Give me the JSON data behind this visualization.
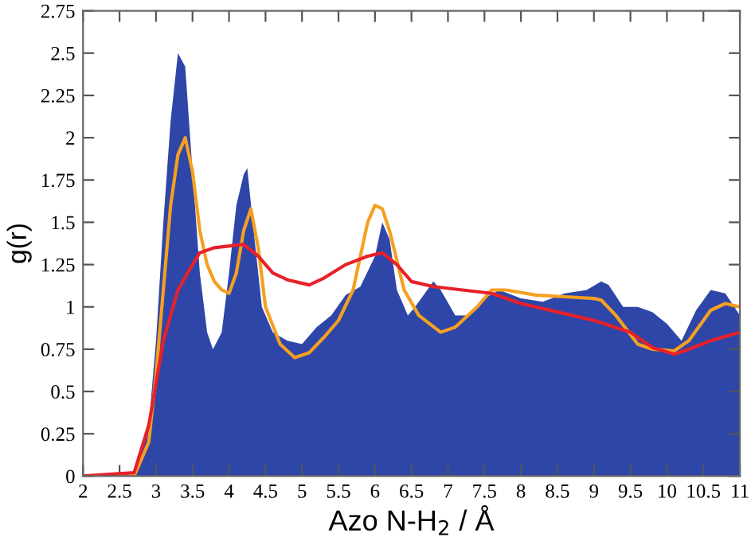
{
  "chart_data": {
    "type": "area",
    "xlabel": "Azo N-H$_{2}$ / Å",
    "ylabel": "g(r)",
    "xlim": [
      2,
      11
    ],
    "ylim": [
      0,
      2.75
    ],
    "xticks": [
      2,
      2.5,
      3,
      3.5,
      4,
      4.5,
      5,
      5.5,
      6,
      6.5,
      7,
      7.5,
      8,
      8.5,
      9,
      9.5,
      10,
      10.5,
      11
    ],
    "yticks": [
      0,
      0.25,
      0.5,
      0.75,
      1,
      1.25,
      1.5,
      1.75,
      2,
      2.25,
      2.5,
      2.75
    ],
    "grid": false,
    "series": [
      {
        "color": "#2e46a8",
        "x": [
          2,
          2.7,
          2.9,
          3.0,
          3.1,
          3.2,
          3.3,
          3.4,
          3.5,
          3.6,
          3.7,
          3.78,
          3.9,
          4.0,
          4.1,
          4.2,
          4.25,
          4.35,
          4.45,
          4.6,
          4.8,
          5.0,
          5.2,
          5.4,
          5.6,
          5.8,
          6.0,
          6.1,
          6.2,
          6.3,
          6.45,
          6.55,
          6.8,
          6.9,
          7.1,
          7.3,
          7.5,
          7.7,
          8.0,
          8.3,
          8.6,
          8.9,
          9.1,
          9.2,
          9.4,
          9.6,
          9.8,
          10.0,
          10.2,
          10.4,
          10.6,
          10.8,
          11.0
        ],
        "values": [
          0,
          0,
          0.3,
          0.8,
          1.5,
          2.1,
          2.5,
          2.42,
          1.8,
          1.2,
          0.85,
          0.75,
          0.85,
          1.2,
          1.6,
          1.78,
          1.82,
          1.4,
          1.0,
          0.85,
          0.8,
          0.78,
          0.88,
          0.95,
          1.07,
          1.12,
          1.3,
          1.5,
          1.4,
          1.1,
          0.95,
          1.0,
          1.15,
          1.1,
          0.95,
          0.95,
          1.05,
          1.1,
          1.05,
          1.03,
          1.08,
          1.1,
          1.15,
          1.13,
          1.0,
          1.0,
          0.97,
          0.9,
          0.8,
          0.98,
          1.1,
          1.08,
          0.95
        ]
      },
      {
        "type": "line",
        "color": "#f5a020",
        "x": [
          2,
          2.7,
          2.9,
          3.0,
          3.1,
          3.2,
          3.3,
          3.4,
          3.5,
          3.6,
          3.7,
          3.8,
          3.9,
          4.0,
          4.1,
          4.2,
          4.3,
          4.4,
          4.5,
          4.7,
          4.9,
          5.1,
          5.3,
          5.5,
          5.7,
          5.9,
          6.0,
          6.1,
          6.2,
          6.4,
          6.6,
          6.9,
          7.1,
          7.4,
          7.6,
          7.8,
          8.2,
          8.6,
          9.0,
          9.1,
          9.3,
          9.6,
          9.8,
          10.1,
          10.3,
          10.6,
          10.8,
          11.0
        ],
        "values": [
          0,
          0,
          0.2,
          0.6,
          1.1,
          1.6,
          1.9,
          2.0,
          1.8,
          1.45,
          1.25,
          1.15,
          1.1,
          1.08,
          1.2,
          1.45,
          1.58,
          1.35,
          1.0,
          0.78,
          0.7,
          0.73,
          0.82,
          0.92,
          1.1,
          1.5,
          1.6,
          1.58,
          1.45,
          1.1,
          0.95,
          0.85,
          0.88,
          1.0,
          1.1,
          1.1,
          1.07,
          1.06,
          1.05,
          1.04,
          0.95,
          0.78,
          0.75,
          0.74,
          0.8,
          0.98,
          1.02,
          1.0
        ]
      },
      {
        "type": "line",
        "color": "#e8202a",
        "x": [
          2,
          2.7,
          2.9,
          3.1,
          3.3,
          3.5,
          3.6,
          3.8,
          4.2,
          4.4,
          4.6,
          4.8,
          5.1,
          5.3,
          5.6,
          5.9,
          6.1,
          6.3,
          6.5,
          6.8,
          7.2,
          7.6,
          8.0,
          8.5,
          9.0,
          9.5,
          9.8,
          10.1,
          10.3,
          10.6,
          11.0
        ],
        "values": [
          0,
          0.02,
          0.3,
          0.8,
          1.1,
          1.25,
          1.32,
          1.35,
          1.37,
          1.3,
          1.2,
          1.16,
          1.13,
          1.17,
          1.25,
          1.3,
          1.32,
          1.25,
          1.15,
          1.12,
          1.1,
          1.08,
          1.02,
          0.97,
          0.92,
          0.85,
          0.76,
          0.72,
          0.75,
          0.8,
          0.85
        ]
      }
    ]
  }
}
